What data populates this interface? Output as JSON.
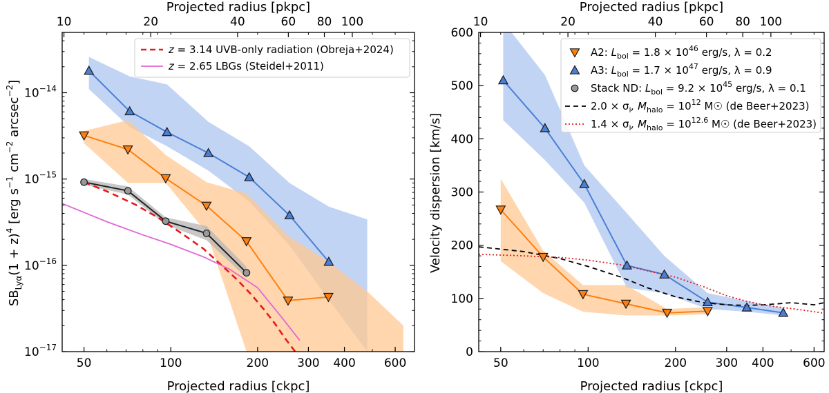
{
  "chart_data": [
    {
      "type": "line",
      "xscale": "log",
      "yscale": "log",
      "xlabel": "Projected radius [ckpc]",
      "ylabel": "SB_Lyα(1+z)^4 [erg s^-1 cm^-2 arcsec^-2]",
      "top_xlabel": "Projected radius [pkpc]",
      "xlim": [
        42,
        700
      ],
      "ylim": [
        1e-17,
        5e-14
      ],
      "x_ticks": [
        50,
        100,
        200,
        300,
        400,
        600
      ],
      "x_tick_labels": [
        "50",
        "100",
        "200",
        "300",
        "400",
        "600"
      ],
      "y_ticks": [
        1e-17,
        1e-16,
        1e-15,
        1e-14
      ],
      "y_tick_labels": [
        [
          "10",
          "−17"
        ],
        [
          "10",
          "−16"
        ],
        [
          "10",
          "−15"
        ],
        [
          "10",
          "−14"
        ]
      ],
      "top_ticks_ckpc": [
        42.6,
        85.2,
        170.4,
        255.6,
        340.8,
        426
      ],
      "top_tick_labels": [
        "10",
        "20",
        "40",
        "60",
        "80",
        "100"
      ],
      "legend_position": "top-right",
      "series": [
        {
          "name": "A3",
          "color": "#4a7fd4",
          "marker": "triangle-up",
          "x": [
            52,
            72,
            97,
            135,
            187,
            258,
            353
          ],
          "y": [
            1.8e-14,
            6.1e-15,
            3.5e-15,
            2e-15,
            1.05e-15,
            3.8e-16,
            1.1e-16
          ],
          "band": {
            "x": [
              52,
              72,
              97,
              135,
              187,
              258,
              353,
              480
            ],
            "lower": [
              1.1e-14,
              4e-15,
              2.4e-15,
              1.25e-15,
              5.5e-16,
              1.7e-16,
              4e-17,
              1e-17
            ],
            "upper": [
              2.6e-14,
              1.55e-14,
              1.25e-14,
              4.6e-15,
              2.4e-15,
              9e-16,
              4.8e-16,
              3.4e-16
            ],
            "color": "#aec6f0"
          }
        },
        {
          "name": "A2",
          "color": "#ff7f0e",
          "marker": "triangle-down",
          "x": [
            50,
            71,
            96,
            133,
            183,
            255,
            352
          ],
          "y": [
            3.2e-15,
            2.2e-15,
            1.02e-15,
            4.9e-16,
            1.9e-16,
            3.9e-17,
            4.3e-17
          ],
          "band": {
            "x": [
              50,
              71,
              96,
              133,
              183,
              255,
              352,
              480,
              640
            ],
            "lower": [
              2.6e-15,
              9e-16,
              9e-16,
              2.4e-16,
              1e-17,
              1e-17,
              1e-17,
              1e-17,
              1e-17
            ],
            "upper": [
              3.6e-15,
              4.8e-15,
              1.9e-15,
              9.2e-16,
              6.8e-16,
              2.2e-16,
              1.1e-16,
              5e-17,
              2e-17
            ],
            "color": "#ffc891"
          }
        },
        {
          "name": "Stack ND",
          "color": "#222222",
          "marker": "circle",
          "x": [
            50,
            71,
            96,
            133,
            183
          ],
          "y": [
            9.2e-16,
            7.3e-16,
            3.25e-16,
            2.35e-16,
            8.2e-17
          ],
          "band": {
            "x": [
              50,
              71,
              96,
              133,
              183
            ],
            "lower": [
              8.6e-16,
              6.6e-16,
              2.95e-16,
              1.95e-16,
              7.2e-17
            ],
            "upper": [
              1e-15,
              8.2e-16,
              3.6e-16,
              2.85e-16,
              9.6e-17
            ],
            "color": "#b5b5b5"
          }
        },
        {
          "name": "z = 3.14 UVB-only radiation (Obreja+2024)",
          "color": "#e41a1c",
          "style": "dashed",
          "x": [
            50,
            60,
            75,
            90,
            110,
            130,
            150,
            170,
            190,
            210,
            230,
            250,
            270
          ],
          "y": [
            9.2e-16,
            7.2e-16,
            5.1e-16,
            3.6e-16,
            2.3e-16,
            1.55e-16,
            1e-16,
            6.8e-17,
            4.6e-17,
            3.1e-17,
            2.1e-17,
            1.4e-17,
            1e-17
          ]
        },
        {
          "name": "z = 2.65 LBGs (Steidel+2011)",
          "color": "#e066d6",
          "style": "solid",
          "x": [
            42,
            60,
            80,
            100,
            130,
            160,
            200,
            240,
            280
          ],
          "y": [
            5.2e-16,
            3.2e-16,
            2.25e-16,
            1.75e-16,
            1.25e-16,
            9e-17,
            5.5e-17,
            2.6e-17,
            1.35e-17
          ]
        }
      ],
      "legend": [
        {
          "prefix": "z",
          "text": " = 3.14 UVB-only radiation (Obreja+2024)",
          "color": "#e41a1c",
          "style": "dashed"
        },
        {
          "prefix": "z",
          "text": " = 2.65 LBGs (Steidel+2011)",
          "color": "#e066d6",
          "style": "solid"
        }
      ]
    },
    {
      "type": "line",
      "xscale": "log",
      "yscale": "linear",
      "xlabel": "Projected radius [ckpc]",
      "ylabel": "Velocity dispersion [km/s]",
      "top_xlabel": "Projected radius [pkpc]",
      "xlim": [
        42,
        650
      ],
      "ylim": [
        0,
        600
      ],
      "x_ticks": [
        50,
        100,
        200,
        300,
        400,
        600
      ],
      "x_tick_labels": [
        "50",
        "100",
        "200",
        "300",
        "400",
        "600"
      ],
      "y_ticks": [
        0,
        100,
        200,
        300,
        400,
        500,
        600
      ],
      "y_tick_labels": [
        "0",
        "100",
        "200",
        "300",
        "400",
        "500",
        "600"
      ],
      "top_ticks_ckpc": [
        42.6,
        85.2,
        170.4,
        255.6,
        340.8,
        426
      ],
      "top_tick_labels": [
        "10",
        "20",
        "40",
        "60",
        "80",
        "100"
      ],
      "legend_position": "top-right",
      "series": [
        {
          "name": "A3",
          "color": "#4a7fd4",
          "marker": "triangle-up",
          "x": [
            51,
            71,
            97,
            136,
            183,
            258,
            352,
            470
          ],
          "y": [
            510,
            420,
            315,
            162,
            145,
            93,
            83,
            73
          ],
          "band": {
            "x": [
              51,
              71,
              97,
              136,
              183,
              258,
              352,
              470
            ],
            "lower": [
              435,
              360,
              280,
              120,
              110,
              80,
              75,
              68
            ],
            "upper": [
              620,
              520,
              350,
              260,
              180,
              110,
              95,
              82
            ],
            "color": "#aec6f0"
          }
        },
        {
          "name": "A2",
          "color": "#ff7f0e",
          "marker": "triangle-down",
          "x": [
            50,
            70,
            96,
            135,
            187,
            258
          ],
          "y": [
            267,
            178,
            108,
            90,
            73,
            76
          ],
          "band": {
            "x": [
              50,
              70,
              96,
              135,
              187,
              258
            ],
            "lower": [
              170,
              110,
              75,
              68,
              68,
              70
            ],
            "upper": [
              325,
              190,
              125,
              125,
              80,
              84
            ],
            "color": "#ffc891"
          }
        },
        {
          "name": "2.0×σ_i, M_halo = 10^12 M☉ (de Beer+2023)",
          "color": "#000000",
          "style": "dashed",
          "x": [
            42,
            60,
            80,
            100,
            130,
            160,
            200,
            250,
            300,
            350,
            400,
            450,
            500,
            550,
            600,
            650
          ],
          "y": [
            197,
            188,
            175,
            160,
            140,
            120,
            103,
            92,
            88,
            87,
            88,
            90,
            92,
            90,
            88,
            92
          ]
        },
        {
          "name": "1.4×σ_i, M_halo = 10^12.6 M☉ (de Beer+2023)",
          "color": "#e41a1c",
          "style": "dotted",
          "x": [
            42,
            60,
            80,
            100,
            130,
            160,
            200,
            250,
            300,
            350,
            400,
            450,
            500,
            550,
            600,
            650
          ],
          "y": [
            183,
            180,
            177,
            172,
            163,
            152,
            140,
            122,
            105,
            95,
            88,
            84,
            81,
            78,
            75,
            72
          ]
        }
      ],
      "legend": [
        {
          "label": "A2: ",
          "marker": "triangle-down",
          "color": "#ff7f0e",
          "lbol": "1.8 × 10",
          "lbol_exp": "46",
          "tail": " erg/s,  λ = 0.2"
        },
        {
          "label": "A3: ",
          "marker": "triangle-up",
          "color": "#4a7fd4",
          "lbol": "1.7 × 10",
          "lbol_exp": "47",
          "tail": " erg/s,  λ = 0.9"
        },
        {
          "label": "Stack ND: ",
          "marker": "circle",
          "color": "#999999",
          "lbol": "9.2 × 10",
          "lbol_exp": "45",
          "tail": " erg/s,  λ = 0.1"
        },
        {
          "label": "2.0 × σ",
          "style": "dashed",
          "color": "#000000",
          "mexp": "12",
          "tail": " M☉ (de Beer+2023)"
        },
        {
          "label": "1.4 × σ",
          "style": "dotted",
          "color": "#e41a1c",
          "mexp": "12.6",
          "tail": " M☉ (de Beer+2023)"
        }
      ]
    }
  ]
}
